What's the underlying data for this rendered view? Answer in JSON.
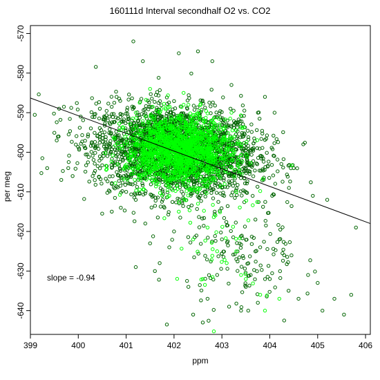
{
  "chart_data": {
    "type": "scatter",
    "title": "160111d   Interval secondhalf O2 vs. CO2",
    "xlabel": "ppm",
    "ylabel": "per meg",
    "xlim": [
      399,
      406.1
    ],
    "ylim": [
      -646,
      -568
    ],
    "x_ticks": [
      399,
      400,
      401,
      402,
      403,
      404,
      405,
      406
    ],
    "y_ticks": [
      -570,
      -580,
      -590,
      -600,
      -610,
      -620,
      -630,
      -640
    ],
    "grid": false,
    "legend": "none",
    "annotation": "slope =  -0.94",
    "slope": -0.94,
    "fit_line": {
      "x": [
        399,
        406.1
      ],
      "y": [
        -586.3,
        -618.0
      ]
    },
    "colors": {
      "dark_green": "#006400",
      "bright_green": "#00ff00",
      "line": "#000000"
    },
    "series": [
      {
        "color": "#006400",
        "description_points": "main cloud centered near 402 ppm / -600 per meg plus tail toward 403.5 ppm / -635",
        "points": [
          [
            399.25,
            -601.5
          ],
          [
            399.35,
            -604
          ],
          [
            399.55,
            -597
          ],
          [
            399.6,
            -589
          ],
          [
            399.7,
            -588.5
          ],
          [
            399.8,
            -595.5
          ],
          [
            400.05,
            -591
          ],
          [
            400.2,
            -596
          ],
          [
            400.3,
            -606
          ],
          [
            400.45,
            -589
          ],
          [
            400.5,
            -615.5
          ],
          [
            400.65,
            -591
          ],
          [
            400.7,
            -608
          ],
          [
            400.8,
            -586
          ],
          [
            400.9,
            -597
          ],
          [
            400.95,
            -606
          ],
          [
            401.0,
            -610
          ],
          [
            401.05,
            -595
          ],
          [
            401.1,
            -593
          ],
          [
            401.15,
            -572
          ],
          [
            401.2,
            -612
          ],
          [
            401.3,
            -604
          ],
          [
            401.35,
            -577
          ],
          [
            401.4,
            -618
          ],
          [
            401.5,
            -623
          ],
          [
            401.6,
            -630
          ],
          [
            401.7,
            -628
          ],
          [
            401.8,
            -614
          ],
          [
            401.9,
            -624
          ],
          [
            402.0,
            -620
          ],
          [
            402.1,
            -575
          ],
          [
            402.2,
            -607
          ],
          [
            402.3,
            -634
          ],
          [
            402.4,
            -641
          ],
          [
            402.5,
            -574.5
          ],
          [
            402.55,
            -611
          ],
          [
            402.6,
            -592
          ],
          [
            402.7,
            -637
          ],
          [
            402.8,
            -577
          ],
          [
            402.85,
            -615
          ],
          [
            402.9,
            -631
          ],
          [
            403.0,
            -622
          ],
          [
            403.1,
            -593
          ],
          [
            403.15,
            -639
          ],
          [
            403.2,
            -583
          ],
          [
            403.3,
            -627
          ],
          [
            403.4,
            -640
          ],
          [
            403.45,
            -596
          ],
          [
            403.5,
            -634
          ],
          [
            403.6,
            -631
          ],
          [
            403.7,
            -617
          ],
          [
            403.75,
            -638
          ],
          [
            403.8,
            -624
          ],
          [
            403.9,
            -586
          ],
          [
            404.0,
            -632
          ],
          [
            404.05,
            -611
          ],
          [
            404.1,
            -590
          ],
          [
            404.2,
            -622
          ],
          [
            404.3,
            -626
          ],
          [
            404.4,
            -609
          ],
          [
            404.5,
            -604
          ],
          [
            404.6,
            -637
          ],
          [
            404.7,
            -598
          ],
          [
            404.8,
            -631
          ],
          [
            404.9,
            -611
          ],
          [
            405.0,
            -633
          ],
          [
            405.1,
            -640
          ],
          [
            405.2,
            -612
          ],
          [
            405.35,
            -637
          ],
          [
            405.55,
            -641
          ],
          [
            405.7,
            -636
          ],
          [
            405.8,
            -619
          ],
          [
            401.85,
            -643.5
          ],
          [
            402.6,
            -643
          ],
          [
            403.55,
            -640
          ],
          [
            404.3,
            -642.5
          ],
          [
            401.2,
            -629
          ],
          [
            400.7,
            -615
          ]
        ]
      },
      {
        "color": "#00ff00",
        "description_points": "dense core near 402 ppm / -600 per meg with scattered outliers below",
        "points": [
          [
            401.2,
            -590
          ],
          [
            401.4,
            -598
          ],
          [
            401.6,
            -603
          ],
          [
            401.8,
            -596
          ],
          [
            402.0,
            -600
          ],
          [
            402.2,
            -598
          ],
          [
            402.4,
            -604
          ],
          [
            402.6,
            -601
          ],
          [
            402.8,
            -597
          ],
          [
            403.0,
            -603
          ],
          [
            401.7,
            -590
          ],
          [
            402.3,
            -588
          ],
          [
            401.9,
            -611
          ],
          [
            402.5,
            -613
          ],
          [
            402.1,
            -615
          ],
          [
            403.3,
            -610
          ],
          [
            402.7,
            -619
          ],
          [
            402.9,
            -625
          ],
          [
            403.1,
            -628
          ],
          [
            402.4,
            -622
          ],
          [
            403.5,
            -632
          ],
          [
            403.8,
            -636
          ],
          [
            403.9,
            -640
          ],
          [
            402.6,
            -632
          ],
          [
            403.4,
            -631
          ],
          [
            401.5,
            -584
          ],
          [
            402.2,
            -585
          ],
          [
            403.2,
            -590
          ],
          [
            401.3,
            -607
          ],
          [
            404.2,
            -637
          ]
        ]
      }
    ]
  }
}
